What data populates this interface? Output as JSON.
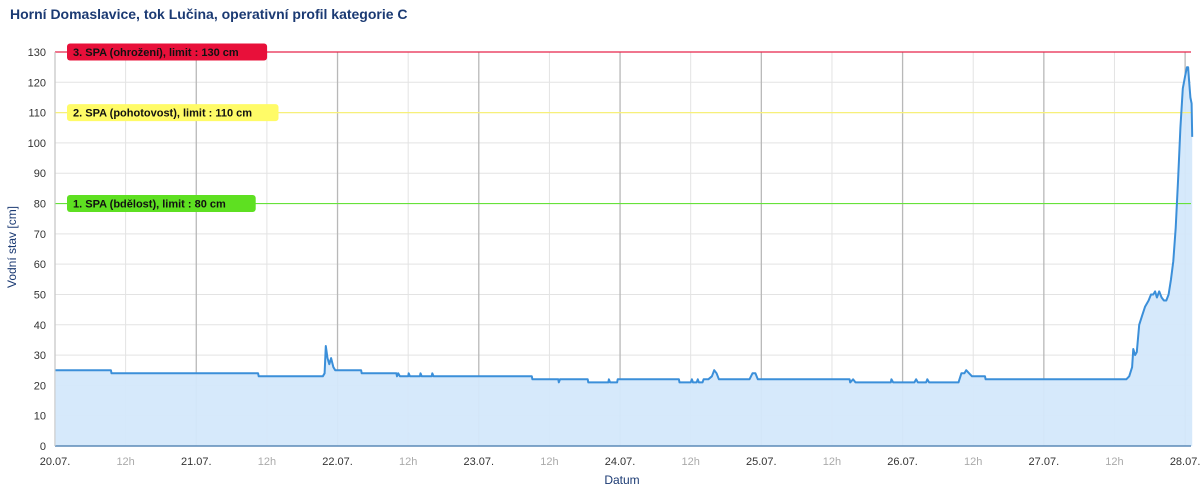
{
  "chart_data": {
    "type": "area",
    "title": "Horní Domaslavice, tok Lučina, operativní profil kategorie C",
    "xlabel": "Datum",
    "ylabel": "Vodní stav [cm]",
    "ylim": [
      0,
      130
    ],
    "yticks": [
      0,
      10,
      20,
      30,
      40,
      50,
      60,
      70,
      80,
      90,
      100,
      110,
      120,
      130
    ],
    "xlim_hours": [
      0,
      193
    ],
    "x_unit": "hours since 20.07. 00:00",
    "xticks": [
      {
        "h": 0,
        "label": "20.07.",
        "major": true
      },
      {
        "h": 12,
        "label": "12h",
        "major": false
      },
      {
        "h": 24,
        "label": "21.07.",
        "major": true
      },
      {
        "h": 36,
        "label": "12h",
        "major": false
      },
      {
        "h": 48,
        "label": "22.07.",
        "major": true
      },
      {
        "h": 60,
        "label": "12h",
        "major": false
      },
      {
        "h": 72,
        "label": "23.07.",
        "major": true
      },
      {
        "h": 84,
        "label": "12h",
        "major": false
      },
      {
        "h": 96,
        "label": "24.07.",
        "major": true
      },
      {
        "h": 108,
        "label": "12h",
        "major": false
      },
      {
        "h": 120,
        "label": "25.07.",
        "major": true
      },
      {
        "h": 132,
        "label": "12h",
        "major": false
      },
      {
        "h": 144,
        "label": "26.07.",
        "major": true
      },
      {
        "h": 156,
        "label": "12h",
        "major": false
      },
      {
        "h": 168,
        "label": "27.07.",
        "major": true
      },
      {
        "h": 180,
        "label": "12h",
        "major": false
      },
      {
        "h": 192,
        "label": "28.07.",
        "major": true
      }
    ],
    "grid": true,
    "series": [
      {
        "color": "#3b8fd9",
        "fill": "#d4e8fb",
        "points": [
          [
            0,
            25
          ],
          [
            9.5,
            25
          ],
          [
            9.6,
            24
          ],
          [
            34.5,
            24
          ],
          [
            34.6,
            23
          ],
          [
            45.5,
            23
          ],
          [
            45.8,
            24
          ],
          [
            46.0,
            33
          ],
          [
            46.3,
            29
          ],
          [
            46.6,
            27
          ],
          [
            46.9,
            29
          ],
          [
            47.3,
            26
          ],
          [
            47.6,
            25
          ],
          [
            52.0,
            25
          ],
          [
            52.1,
            24
          ],
          [
            58.0,
            24
          ],
          [
            58.1,
            23
          ],
          [
            58.3,
            24
          ],
          [
            58.6,
            23
          ],
          [
            60.0,
            23
          ],
          [
            60.1,
            24
          ],
          [
            60.3,
            23
          ],
          [
            62.0,
            23
          ],
          [
            62.1,
            24
          ],
          [
            62.3,
            23
          ],
          [
            64.0,
            23
          ],
          [
            64.1,
            24
          ],
          [
            64.3,
            23
          ],
          [
            81.0,
            23
          ],
          [
            81.1,
            22
          ],
          [
            85.5,
            22
          ],
          [
            85.6,
            21
          ],
          [
            85.8,
            22
          ],
          [
            90.5,
            22
          ],
          [
            90.6,
            21
          ],
          [
            94.0,
            21
          ],
          [
            94.1,
            22
          ],
          [
            94.3,
            21
          ],
          [
            95.5,
            21
          ],
          [
            95.6,
            22
          ],
          [
            106.0,
            22
          ],
          [
            106.1,
            21
          ],
          [
            108.0,
            21
          ],
          [
            108.2,
            22
          ],
          [
            108.4,
            21
          ],
          [
            109.0,
            21
          ],
          [
            109.2,
            22
          ],
          [
            109.4,
            21
          ],
          [
            110.0,
            21
          ],
          [
            110.2,
            22
          ],
          [
            111.0,
            22
          ],
          [
            111.6,
            23
          ],
          [
            112.0,
            25
          ],
          [
            112.4,
            24
          ],
          [
            112.8,
            22
          ],
          [
            118.0,
            22
          ],
          [
            118.5,
            24
          ],
          [
            119.0,
            24
          ],
          [
            119.4,
            22
          ],
          [
            135.0,
            22
          ],
          [
            135.1,
            21
          ],
          [
            135.6,
            22
          ],
          [
            136.0,
            21
          ],
          [
            142.0,
            21
          ],
          [
            142.1,
            22
          ],
          [
            142.4,
            21
          ],
          [
            146.0,
            21
          ],
          [
            146.3,
            22
          ],
          [
            146.6,
            21
          ],
          [
            148.0,
            21
          ],
          [
            148.2,
            22
          ],
          [
            148.5,
            21
          ],
          [
            153.5,
            21
          ],
          [
            154.0,
            24
          ],
          [
            154.5,
            24
          ],
          [
            154.8,
            25
          ],
          [
            155.3,
            24
          ],
          [
            155.8,
            23
          ],
          [
            158.0,
            23
          ],
          [
            158.1,
            22
          ],
          [
            182.0,
            22
          ],
          [
            182.5,
            23
          ],
          [
            183.0,
            26
          ],
          [
            183.2,
            32
          ],
          [
            183.5,
            30
          ],
          [
            183.8,
            31
          ],
          [
            184.2,
            40
          ],
          [
            184.7,
            43
          ],
          [
            185.2,
            46
          ],
          [
            185.8,
            48
          ],
          [
            186.2,
            50
          ],
          [
            186.6,
            50
          ],
          [
            186.9,
            51
          ],
          [
            187.2,
            49
          ],
          [
            187.6,
            51
          ],
          [
            188.0,
            49
          ],
          [
            188.4,
            48
          ],
          [
            188.8,
            48
          ],
          [
            189.2,
            50
          ],
          [
            189.6,
            55
          ],
          [
            190.0,
            61
          ],
          [
            190.4,
            72
          ],
          [
            190.8,
            88
          ],
          [
            191.2,
            105
          ],
          [
            191.6,
            118
          ],
          [
            192.0,
            122
          ],
          [
            192.3,
            125
          ],
          [
            192.5,
            125
          ],
          [
            192.7,
            120
          ],
          [
            192.9,
            115
          ],
          [
            193.1,
            113
          ],
          [
            193.2,
            102
          ]
        ]
      }
    ],
    "thresholds": [
      {
        "value": 80,
        "label": "1. SPA (bdělost), limit : 80 cm",
        "line_color": "#66e23a",
        "bg": "#5ee021",
        "text_color": "#111111"
      },
      {
        "value": 110,
        "label": "2. SPA (pohotovost), limit : 110 cm",
        "line_color": "#f7f07a",
        "bg": "#fffb67",
        "text_color": "#111111"
      },
      {
        "value": 130,
        "label": "3. SPA (ohrožení), limit : 130 cm",
        "line_color": "#e8254a",
        "bg": "#e8103a",
        "text_color": "#111111"
      }
    ]
  }
}
